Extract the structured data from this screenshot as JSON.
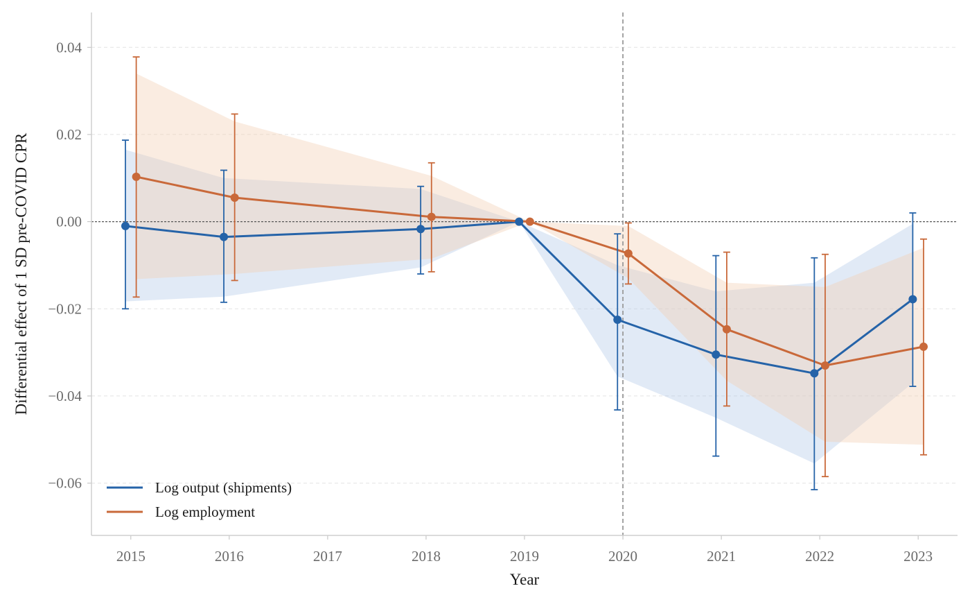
{
  "chart_data": {
    "type": "line",
    "xlabel": "Year",
    "ylabel": "Differential effect of 1 SD pre-COVID CPR",
    "xlim": [
      2014.6,
      2023.4
    ],
    "ylim": [
      -0.072,
      0.048
    ],
    "x_ticks": [
      2015,
      2016,
      2017,
      2018,
      2019,
      2020,
      2021,
      2022,
      2023
    ],
    "y_ticks": [
      0.04,
      0.02,
      0.0,
      -0.02,
      -0.04,
      -0.06
    ],
    "y_tick_labels": [
      "0.04",
      "0.02",
      "0.00",
      "−0.02",
      "−0.04",
      "−0.06"
    ],
    "grid": "horizontal dashed",
    "reference_lines": {
      "horizontal_y": 0.0,
      "vertical_x": 2020
    },
    "legend_position": "bottom-left",
    "series": [
      {
        "name": "Log output (shipments)",
        "color": "#2563a8",
        "band_color": "#a9c2e4",
        "x_offset": -0.055,
        "points": [
          {
            "x": 2015,
            "y": -0.001,
            "lo": -0.02,
            "hi": 0.0187
          },
          {
            "x": 2016,
            "y": -0.0035,
            "lo": -0.0185,
            "hi": 0.0118
          },
          {
            "x": 2018,
            "y": -0.0017,
            "lo": -0.012,
            "hi": 0.0081
          },
          {
            "x": 2019,
            "y": 0.0,
            "lo": 0.0,
            "hi": 0.0
          },
          {
            "x": 2020,
            "y": -0.0225,
            "lo": -0.0432,
            "hi": -0.0028
          },
          {
            "x": 2021,
            "y": -0.0305,
            "lo": -0.0538,
            "hi": -0.0078
          },
          {
            "x": 2022,
            "y": -0.0348,
            "lo": -0.0615,
            "hi": -0.0083
          },
          {
            "x": 2023,
            "y": -0.0178,
            "lo": -0.0378,
            "hi": 0.002
          }
        ],
        "band": [
          {
            "x": 2015,
            "lo": -0.0183,
            "hi": 0.0165
          },
          {
            "x": 2016,
            "lo": -0.0172,
            "hi": 0.01
          },
          {
            "x": 2018,
            "lo": -0.0105,
            "hi": 0.0075
          },
          {
            "x": 2019,
            "lo": 0.0,
            "hi": 0.0
          },
          {
            "x": 2020,
            "lo": -0.0355,
            "hi": -0.01
          },
          {
            "x": 2021,
            "lo": -0.045,
            "hi": -0.016
          },
          {
            "x": 2022,
            "lo": -0.0555,
            "hi": -0.014
          },
          {
            "x": 2023,
            "lo": -0.037,
            "hi": -0.0005
          }
        ]
      },
      {
        "name": "Log employment",
        "color": "#c9693a",
        "band_color": "#f3cfb3",
        "x_offset": 0.055,
        "points": [
          {
            "x": 2015,
            "y": 0.0103,
            "lo": -0.0173,
            "hi": 0.0378
          },
          {
            "x": 2016,
            "y": 0.0055,
            "lo": -0.0135,
            "hi": 0.0247
          },
          {
            "x": 2018,
            "y": 0.0011,
            "lo": -0.0115,
            "hi": 0.0135
          },
          {
            "x": 2019,
            "y": 0.0,
            "lo": 0.0,
            "hi": 0.0
          },
          {
            "x": 2020,
            "y": -0.0073,
            "lo": -0.0143,
            "hi": -0.0003
          },
          {
            "x": 2021,
            "y": -0.0247,
            "lo": -0.0423,
            "hi": -0.007
          },
          {
            "x": 2022,
            "y": -0.033,
            "lo": -0.0585,
            "hi": -0.0075
          },
          {
            "x": 2023,
            "y": -0.0287,
            "lo": -0.0535,
            "hi": -0.004
          }
        ],
        "band": [
          {
            "x": 2015,
            "lo": -0.0132,
            "hi": 0.034
          },
          {
            "x": 2016,
            "lo": -0.012,
            "hi": 0.023
          },
          {
            "x": 2018,
            "lo": -0.0085,
            "hi": 0.0105
          },
          {
            "x": 2019,
            "lo": 0.0,
            "hi": 0.0
          },
          {
            "x": 2020,
            "lo": -0.013,
            "hi": -0.001
          },
          {
            "x": 2021,
            "lo": -0.0365,
            "hi": -0.014
          },
          {
            "x": 2022,
            "lo": -0.0505,
            "hi": -0.015
          },
          {
            "x": 2023,
            "lo": -0.0512,
            "hi": -0.006
          }
        ]
      }
    ]
  }
}
